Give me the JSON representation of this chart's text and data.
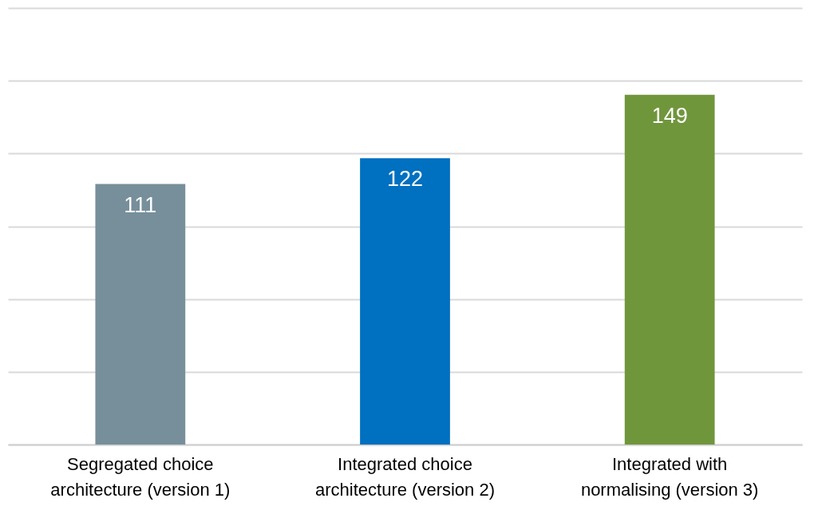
{
  "chart_data": {
    "type": "bar",
    "categories": [
      "Segregated choice architecture (version 1)",
      "Integrated choice architecture (version 2)",
      "Integrated with normalising (version 3)"
    ],
    "values": [
      111,
      122,
      149
    ],
    "colors": [
      "#778f9b",
      "#0070c0",
      "#70963c"
    ],
    "ylim": [
      0,
      186
    ],
    "yticks": [
      {
        "value": 0,
        "label": null
      },
      {
        "value": 31,
        "label": null
      },
      {
        "value": 62,
        "label": null
      },
      {
        "value": 93,
        "label": null
      },
      {
        "value": 124,
        "label": null
      },
      {
        "value": 155,
        "label": null
      },
      {
        "value": 186,
        "label": null
      }
    ],
    "grid": "y",
    "data_labels": true,
    "tick_labels": "x"
  }
}
